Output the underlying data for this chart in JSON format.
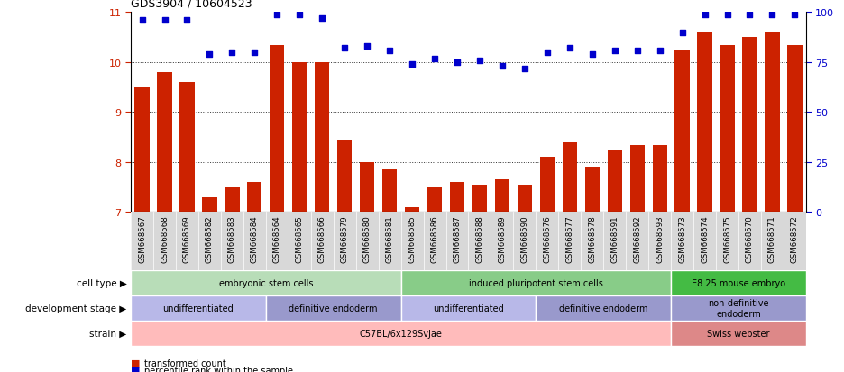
{
  "title": "GDS3904 / 10604523",
  "samples": [
    "GSM668567",
    "GSM668568",
    "GSM668569",
    "GSM668582",
    "GSM668583",
    "GSM668584",
    "GSM668564",
    "GSM668565",
    "GSM668566",
    "GSM668579",
    "GSM668580",
    "GSM668581",
    "GSM668585",
    "GSM668586",
    "GSM668587",
    "GSM668588",
    "GSM668589",
    "GSM668590",
    "GSM668576",
    "GSM668577",
    "GSM668578",
    "GSM668591",
    "GSM668592",
    "GSM668593",
    "GSM668573",
    "GSM668574",
    "GSM668575",
    "GSM668570",
    "GSM668571",
    "GSM668572"
  ],
  "bar_values": [
    9.5,
    9.8,
    9.6,
    7.3,
    7.5,
    7.6,
    10.35,
    10.0,
    10.0,
    8.45,
    8.0,
    7.85,
    7.1,
    7.5,
    7.6,
    7.55,
    7.65,
    7.55,
    8.1,
    8.4,
    7.9,
    8.25,
    8.35,
    8.35,
    10.25,
    10.6,
    10.35,
    10.5,
    10.6,
    10.35
  ],
  "dot_values": [
    96,
    96,
    96,
    79,
    80,
    80,
    99,
    99,
    97,
    82,
    83,
    81,
    74,
    77,
    75,
    76,
    73,
    72,
    80,
    82,
    79,
    81,
    81,
    81,
    90,
    99,
    99,
    99,
    99,
    99
  ],
  "ylim": [
    7,
    11
  ],
  "y2lim": [
    0,
    100
  ],
  "yticks": [
    7,
    8,
    9,
    10,
    11
  ],
  "y2ticks": [
    0,
    25,
    50,
    75,
    100
  ],
  "dotted_lines": [
    8,
    9,
    10
  ],
  "bar_color": "#cc2200",
  "dot_color": "#0000cc",
  "cell_type_groups": [
    {
      "label": "embryonic stem cells",
      "start": 0,
      "end": 12,
      "color": "#b8ddb8"
    },
    {
      "label": "induced pluripotent stem cells",
      "start": 12,
      "end": 24,
      "color": "#88cc88"
    },
    {
      "label": "E8.25 mouse embryo",
      "start": 24,
      "end": 30,
      "color": "#44bb44"
    }
  ],
  "dev_stage_groups": [
    {
      "label": "undifferentiated",
      "start": 0,
      "end": 6,
      "color": "#b8b8e8"
    },
    {
      "label": "definitive endoderm",
      "start": 6,
      "end": 12,
      "color": "#9999cc"
    },
    {
      "label": "undifferentiated",
      "start": 12,
      "end": 18,
      "color": "#b8b8e8"
    },
    {
      "label": "definitive endoderm",
      "start": 18,
      "end": 24,
      "color": "#9999cc"
    },
    {
      "label": "non-definitive\nendoderm",
      "start": 24,
      "end": 30,
      "color": "#9999cc"
    }
  ],
  "strain_groups": [
    {
      "label": "C57BL/6x129SvJae",
      "start": 0,
      "end": 24,
      "color": "#ffbbbb"
    },
    {
      "label": "Swiss webster",
      "start": 24,
      "end": 30,
      "color": "#dd8888"
    }
  ],
  "row_labels": [
    "cell type",
    "development stage",
    "strain"
  ],
  "legend_items": [
    {
      "color": "#cc2200",
      "label": "transformed count"
    },
    {
      "color": "#0000cc",
      "label": "percentile rank within the sample"
    }
  ],
  "xtick_bg": "#d8d8d8"
}
